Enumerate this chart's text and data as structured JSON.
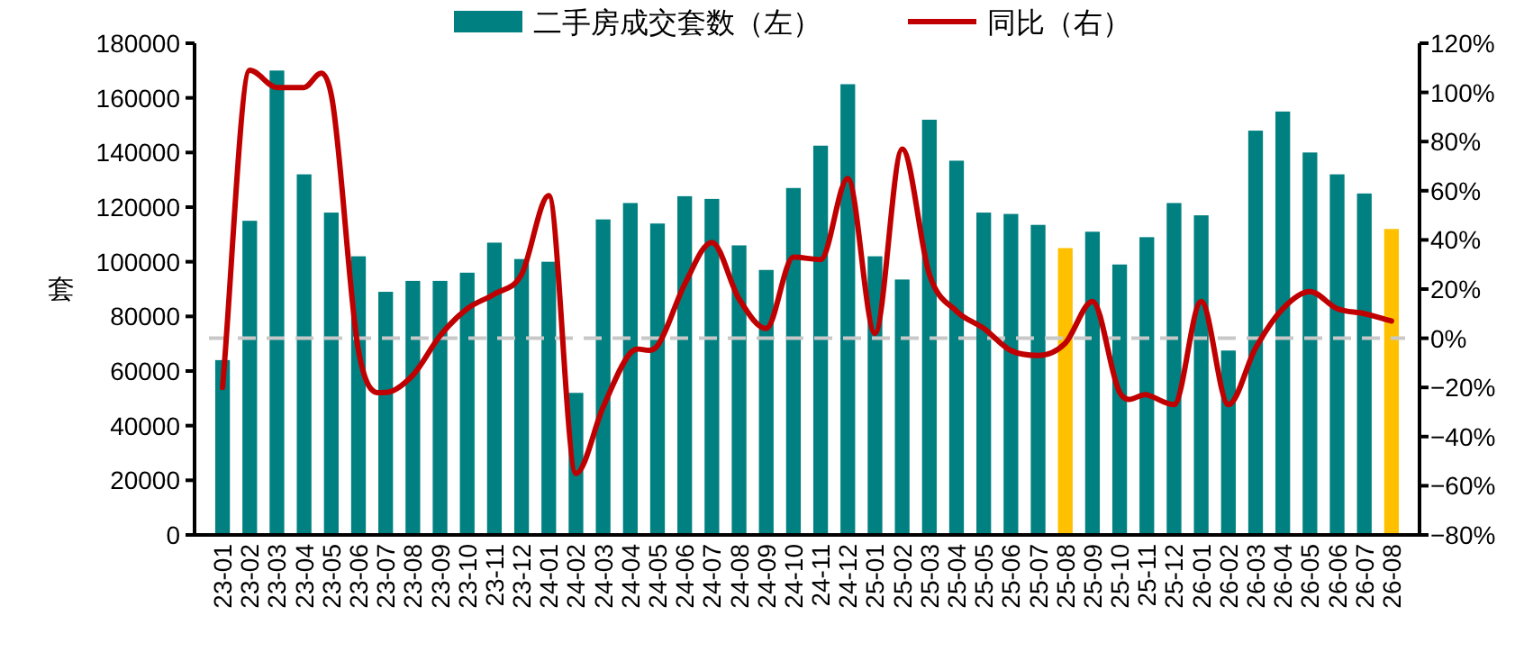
{
  "chart_data": {
    "type": "bar",
    "ylabel": "套",
    "legend": "top",
    "grid": false,
    "categories": [
      "23-01",
      "23-02",
      "23-03",
      "23-04",
      "23-05",
      "23-06",
      "23-07",
      "23-08",
      "23-09",
      "23-10",
      "23-11",
      "23-12",
      "24-01",
      "24-02",
      "24-03",
      "24-04",
      "24-05",
      "24-06",
      "24-07",
      "24-08",
      "24-09",
      "24-10",
      "24-11",
      "24-12",
      "25-01",
      "25-02",
      "25-03",
      "25-04",
      "25-05",
      "25-06",
      "25-07",
      "25-08",
      "25-09",
      "25-10",
      "25-11",
      "25-12",
      "26-01",
      "26-02",
      "26-03",
      "26-04",
      "26-05",
      "26-06",
      "26-07",
      "26-08"
    ],
    "series": [
      {
        "name": "二手房成交套数（左）",
        "color": "#008080",
        "colors": [
          "#008080",
          "#008080",
          "#008080",
          "#008080",
          "#008080",
          "#008080",
          "#008080",
          "#008080",
          "#008080",
          "#008080",
          "#008080",
          "#008080",
          "#008080",
          "#008080",
          "#008080",
          "#008080",
          "#008080",
          "#008080",
          "#008080",
          "#008080",
          "#008080",
          "#008080",
          "#008080",
          "#008080",
          "#008080",
          "#008080",
          "#008080",
          "#008080",
          "#008080",
          "#008080",
          "#008080",
          "#ffc000",
          "#008080",
          "#008080",
          "#008080",
          "#008080",
          "#008080",
          "#008080",
          "#008080",
          "#008080",
          "#008080",
          "#008080",
          "#008080",
          "#ffc000"
        ],
        "values": [
          64000,
          115000,
          170000,
          132000,
          118000,
          102000,
          89000,
          93000,
          93000,
          96000,
          107000,
          101000,
          100000,
          52000,
          115500,
          121500,
          114000,
          124000,
          123000,
          106000,
          97000,
          127000,
          142500,
          165000,
          102000,
          93500,
          152000,
          137000,
          118000,
          117500,
          113500,
          105000,
          111000,
          99000,
          109000,
          121500,
          117000,
          67500,
          148000,
          155000,
          140000,
          132000,
          125000,
          112000
        ]
      },
      {
        "name": "同比（右）",
        "type": "line",
        "axis": "y2",
        "color": "#c00000",
        "marker": "none",
        "values": [
          -20,
          109,
          102,
          102,
          99,
          -5,
          -22,
          -15,
          1,
          12,
          18,
          26,
          58,
          -55,
          -28,
          -6,
          -3,
          22,
          39,
          16,
          4,
          33,
          32,
          65,
          2,
          77,
          26,
          11,
          4,
          -5,
          -7,
          -2,
          15,
          -22,
          -23,
          -27,
          15,
          -27,
          -4,
          12,
          19,
          12,
          10,
          7
        ]
      }
    ],
    "ylim": [
      0,
      180000
    ],
    "yticks": [
      0,
      20000,
      40000,
      60000,
      80000,
      100000,
      120000,
      140000,
      160000,
      180000
    ],
    "y2lim": [
      -80,
      120
    ],
    "y2ticks": [
      {
        "value": -80,
        "label": "−80%"
      },
      {
        "value": -60,
        "label": "−60%"
      },
      {
        "value": -40,
        "label": "−40%"
      },
      {
        "value": -20,
        "label": "−20%"
      },
      {
        "value": 0,
        "label": "0%"
      },
      {
        "value": 20,
        "label": "20%"
      },
      {
        "value": 40,
        "label": "40%"
      },
      {
        "value": 60,
        "label": "60%"
      },
      {
        "value": 80,
        "label": "80%"
      },
      {
        "value": 100,
        "label": "100%"
      },
      {
        "value": 120,
        "label": "120%"
      }
    ],
    "ref_lines": [
      {
        "axis": "y2",
        "value": 0,
        "color": "#c8c8c8",
        "line_style": "dashed"
      }
    ]
  }
}
